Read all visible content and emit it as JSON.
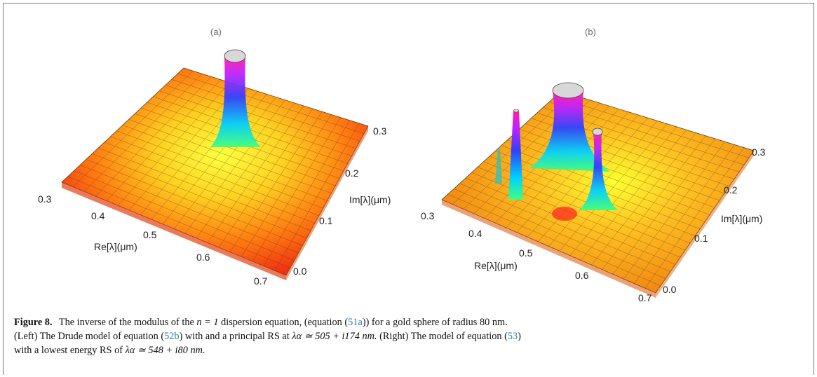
{
  "figure": {
    "panels": [
      {
        "label": "(a)",
        "re_axis_title": "Re[λ](μm)",
        "im_axis_title": "Im[λ](μm)",
        "re_ticks": [
          "0.3",
          "0.4",
          "0.5",
          "0.6",
          "0.7"
        ],
        "im_ticks": [
          "0.0",
          "0.1",
          "0.2",
          "0.3"
        ]
      },
      {
        "label": "(b)",
        "re_axis_title": "Re[λ](μm)",
        "im_axis_title": "Im[λ](μm)",
        "re_ticks": [
          "0.3",
          "0.4",
          "0.5",
          "0.6",
          "0.7"
        ],
        "im_ticks": [
          "0.0",
          "0.1",
          "0.2",
          "0.3"
        ]
      }
    ]
  },
  "caption": {
    "lead": "Figure 8.",
    "t1": "The inverse of the modulus of the",
    "n_eq": "n = 1",
    "t2": "dispersion equation, (equation (",
    "ref1": "51a",
    "t3": ")) for a gold sphere of radius 80 nm.",
    "t4": "(Left) The Drude model of equation (",
    "ref2": "52b",
    "t5": ") with and a principal RS at",
    "val1": "λα ≃ 505 + i174 nm.",
    "t6": "(Right) The model of equation (",
    "ref3": "53",
    "t7": ")",
    "t8": "with a lowest energy RS of",
    "val2": "λα ≃ 548 + i80 nm."
  }
}
